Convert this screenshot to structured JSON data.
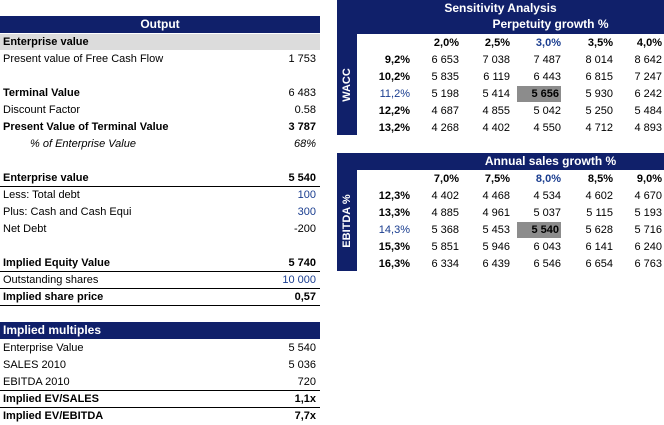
{
  "output": {
    "header": "Output",
    "rows": [
      {
        "label": "Enterprise value",
        "value": ""
      },
      {
        "label": "Present value of Free Cash Flow",
        "value": "1 753"
      },
      {
        "label": "Terminal Value",
        "value": "6 483"
      },
      {
        "label": "Discount Factor",
        "value": "0.58"
      },
      {
        "label": "Present Value of Terminal Value",
        "value": "3 787"
      },
      {
        "label": "% of Enterprise Value",
        "value": "68%"
      },
      {
        "label": "Enterprise value",
        "value": "5 540"
      },
      {
        "label": "Less: Total debt",
        "value": "100"
      },
      {
        "label": "Plus: Cash and Cash Equi",
        "value": "300"
      },
      {
        "label": "Net Debt",
        "value": "-200"
      },
      {
        "label": "Implied Equity Value",
        "value": "5 740"
      },
      {
        "label": "Outstanding shares",
        "value": "10 000"
      },
      {
        "label": "Implied share price",
        "value": "0,57"
      }
    ]
  },
  "multiples": {
    "header": "Implied multiples",
    "rows": [
      {
        "label": "Enterprise Value",
        "value": "5 540"
      },
      {
        "label": "SALES 2010",
        "value": "5 036"
      },
      {
        "label": "EBITDA 2010",
        "value": "720"
      },
      {
        "label": "Implied EV/SALES",
        "value": "1,1x"
      },
      {
        "label": "Implied EV/EBITDA",
        "value": "7,7x"
      }
    ]
  },
  "sensitivity": {
    "title": "Sensitivity Analysis",
    "table1": {
      "col_header": "Perpetuity growth %",
      "row_axis": "WACC",
      "cols": [
        "2,0%",
        "2,5%",
        "3,0%",
        "3,5%",
        "4,0%"
      ],
      "rows": [
        {
          "label": "9,2%",
          "values": [
            "6 653",
            "7 038",
            "7 487",
            "8 014",
            "8 642"
          ]
        },
        {
          "label": "10,2%",
          "values": [
            "5 835",
            "6 119",
            "6 443",
            "6 815",
            "7 247"
          ]
        },
        {
          "label": "11,2%",
          "values": [
            "5 198",
            "5 414",
            "5 656",
            "5 930",
            "6 242"
          ]
        },
        {
          "label": "12,2%",
          "values": [
            "4 687",
            "4 855",
            "5 042",
            "5 250",
            "5 484"
          ]
        },
        {
          "label": "13,2%",
          "values": [
            "4 268",
            "4 402",
            "4 550",
            "4 712",
            "4 893"
          ]
        }
      ]
    },
    "table2": {
      "col_header": "Annual sales growth %",
      "row_axis": "EBITDA %",
      "cols": [
        "7,0%",
        "7,5%",
        "8,0%",
        "8,5%",
        "9,0%"
      ],
      "rows": [
        {
          "label": "12,3%",
          "values": [
            "4 402",
            "4 468",
            "4 534",
            "4 602",
            "4 670"
          ]
        },
        {
          "label": "13,3%",
          "values": [
            "4 885",
            "4 961",
            "5 037",
            "5 115",
            "5 193"
          ]
        },
        {
          "label": "14,3%",
          "values": [
            "5 368",
            "5 453",
            "5 540",
            "5 628",
            "5 716"
          ]
        },
        {
          "label": "15,3%",
          "values": [
            "5 851",
            "5 946",
            "6 043",
            "6 141",
            "6 240"
          ]
        },
        {
          "label": "16,3%",
          "values": [
            "6 334",
            "6 439",
            "6 546",
            "6 654",
            "6 763"
          ]
        }
      ]
    }
  }
}
